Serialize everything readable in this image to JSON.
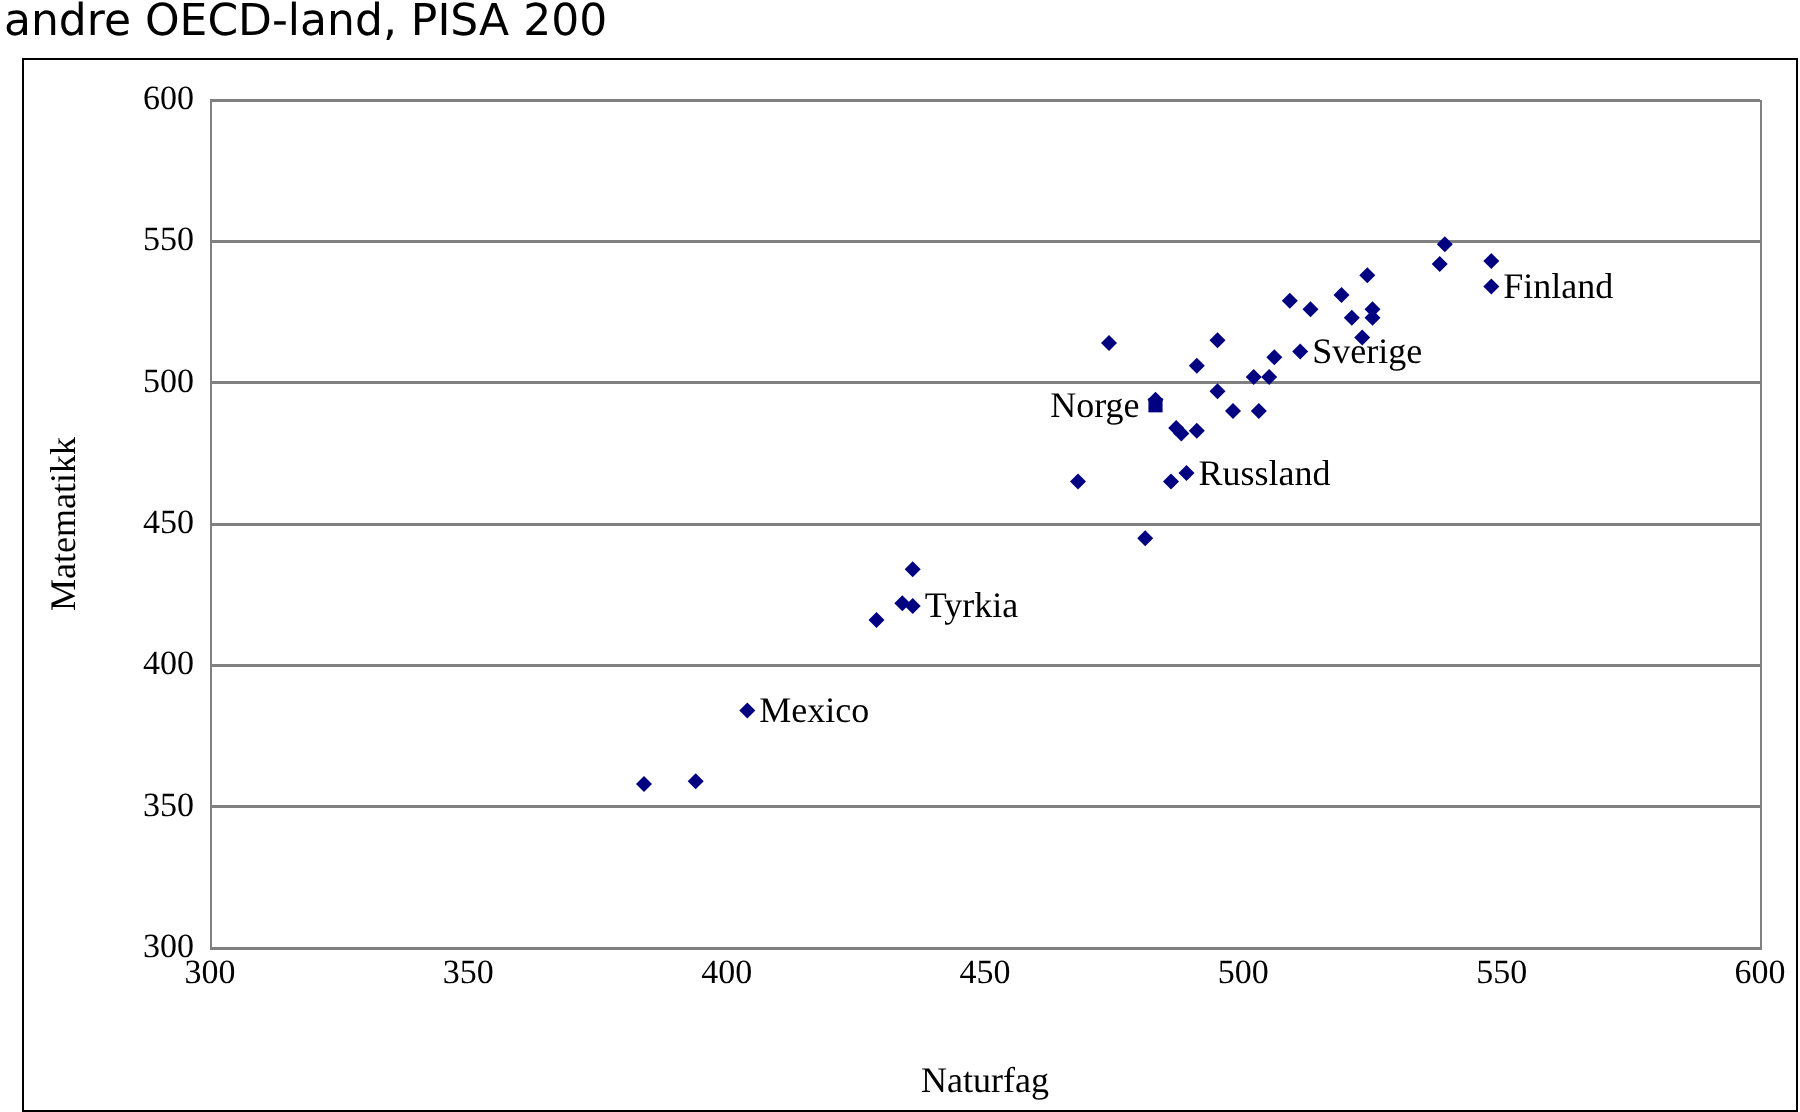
{
  "chart_data": {
    "type": "scatter",
    "title": "andre OECD-land, PISA 200",
    "xlabel": "Naturfag",
    "ylabel": "Matematikk",
    "xlim": [
      300,
      600
    ],
    "xticks": [
      300,
      350,
      400,
      450,
      500,
      550,
      600
    ],
    "ylim": [
      300,
      600
    ],
    "yticks": [
      300,
      350,
      400,
      450,
      500,
      550,
      600
    ],
    "grid": "y",
    "legend": false,
    "series": [
      {
        "color": "#000080",
        "marker": "diamond",
        "x": [
          384,
          394,
          404,
          429,
          434,
          436,
          436,
          468,
          474,
          481,
          483,
          486,
          487,
          488,
          489,
          491,
          491,
          495,
          495,
          498,
          502,
          503,
          505,
          506,
          509,
          511,
          513,
          519,
          521,
          523,
          524,
          525,
          525,
          538,
          539,
          548,
          548
        ],
        "values": [
          358,
          359,
          384,
          416,
          422,
          421,
          434,
          465,
          514,
          445,
          494,
          465,
          484,
          482,
          468,
          483,
          506,
          515,
          497,
          490,
          502,
          490,
          502,
          509,
          529,
          511,
          526,
          531,
          523,
          516,
          538,
          526,
          523,
          542,
          549,
          543,
          534
        ]
      },
      {
        "color": "#000080",
        "marker": "square",
        "x": [
          483
        ],
        "values": [
          492
        ]
      }
    ],
    "annotations": [
      {
        "text": "Finland",
        "x": 548,
        "y": 534
      },
      {
        "text": "Sverige",
        "x": 511,
        "y": 511
      },
      {
        "text": "Norge",
        "x": 483,
        "y": 492
      },
      {
        "text": "Russland",
        "x": 489,
        "y": 468
      },
      {
        "text": "Tyrkia",
        "x": 436,
        "y": 421
      },
      {
        "text": "Mexico",
        "x": 404,
        "y": 384
      }
    ]
  }
}
